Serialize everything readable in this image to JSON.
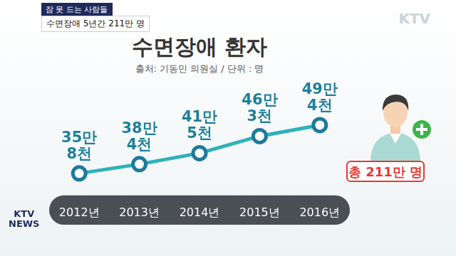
{
  "caption": {
    "tag": "잠 못 드는 사람들",
    "headline": "수면장애 5년간 211만 명"
  },
  "logo": "KTV",
  "news_logo": "KTV NEWS",
  "chart_data": {
    "type": "line",
    "title": "수면장애 환자",
    "subtitle": "출처: 기동민 의원실 / 단위 : 명",
    "categories": [
      "2012년",
      "2013년",
      "2014년",
      "2015년",
      "2016년"
    ],
    "values": [
      358000,
      384000,
      415000,
      463000,
      494000
    ],
    "value_labels": [
      "35만 8천",
      "38만 4천",
      "41만 5천",
      "46만 3천",
      "49만 4천"
    ],
    "color": "#2fb1b8",
    "marker": "circle",
    "data_labels": true,
    "tick_labels": "x",
    "grid": false,
    "annotations": [
      "총 211만 명"
    ]
  }
}
